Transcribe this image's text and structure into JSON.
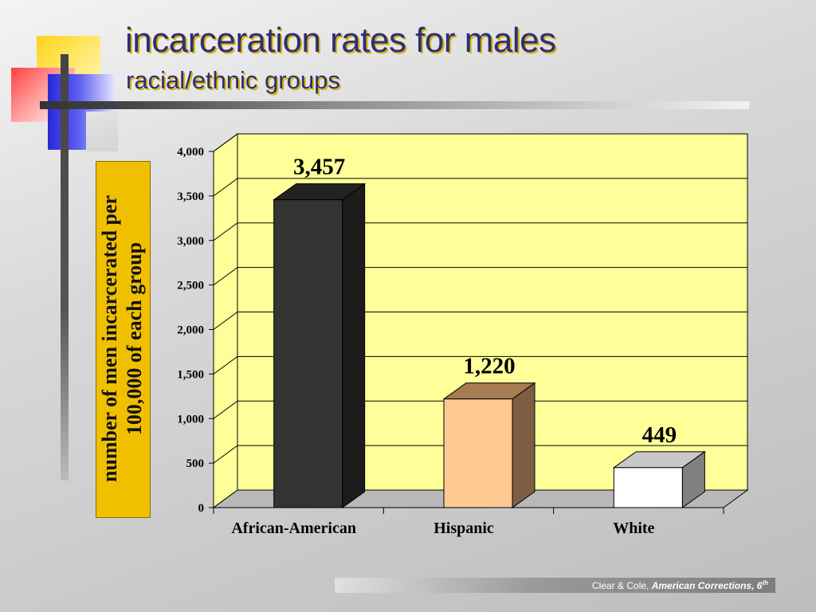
{
  "slide": {
    "title": "incarceration rates for males",
    "subtitle": "racial/ethnic groups",
    "footer": {
      "authors": "Clear & Cole,",
      "book": "American Corrections, 6",
      "edition_sup": "th"
    }
  },
  "colors": {
    "title": "#2e2e7a",
    "title_shadow": "#d4b400",
    "plot_background": "#ffff99",
    "ylabel_box": "#f0c000"
  },
  "chart_data": {
    "type": "bar",
    "style": "3d",
    "categories": [
      "African-American",
      "Hispanic",
      "White"
    ],
    "values": [
      3457,
      1220,
      449
    ],
    "value_labels": [
      "3,457",
      "1,220",
      "449"
    ],
    "bar_colors": [
      "#333333",
      "#ffc993",
      "#ffffff"
    ],
    "bar_side_colors": [
      "#1c1c1c",
      "#7d5e44",
      "#808080"
    ],
    "bar_top_colors": [
      "#222222",
      "#a67c52",
      "#c8c8c8"
    ],
    "ylabel": "number of men incarcerated per 100,000 of each group",
    "yticks": [
      0,
      500,
      1000,
      1500,
      2000,
      2500,
      3000,
      3500,
      4000
    ],
    "ytick_labels": [
      "0",
      "500",
      "1,000",
      "1,500",
      "2,000",
      "2,500",
      "3,000",
      "3,500",
      "4,000"
    ],
    "ylim": [
      0,
      4000
    ],
    "grid": true,
    "legend": "none"
  }
}
